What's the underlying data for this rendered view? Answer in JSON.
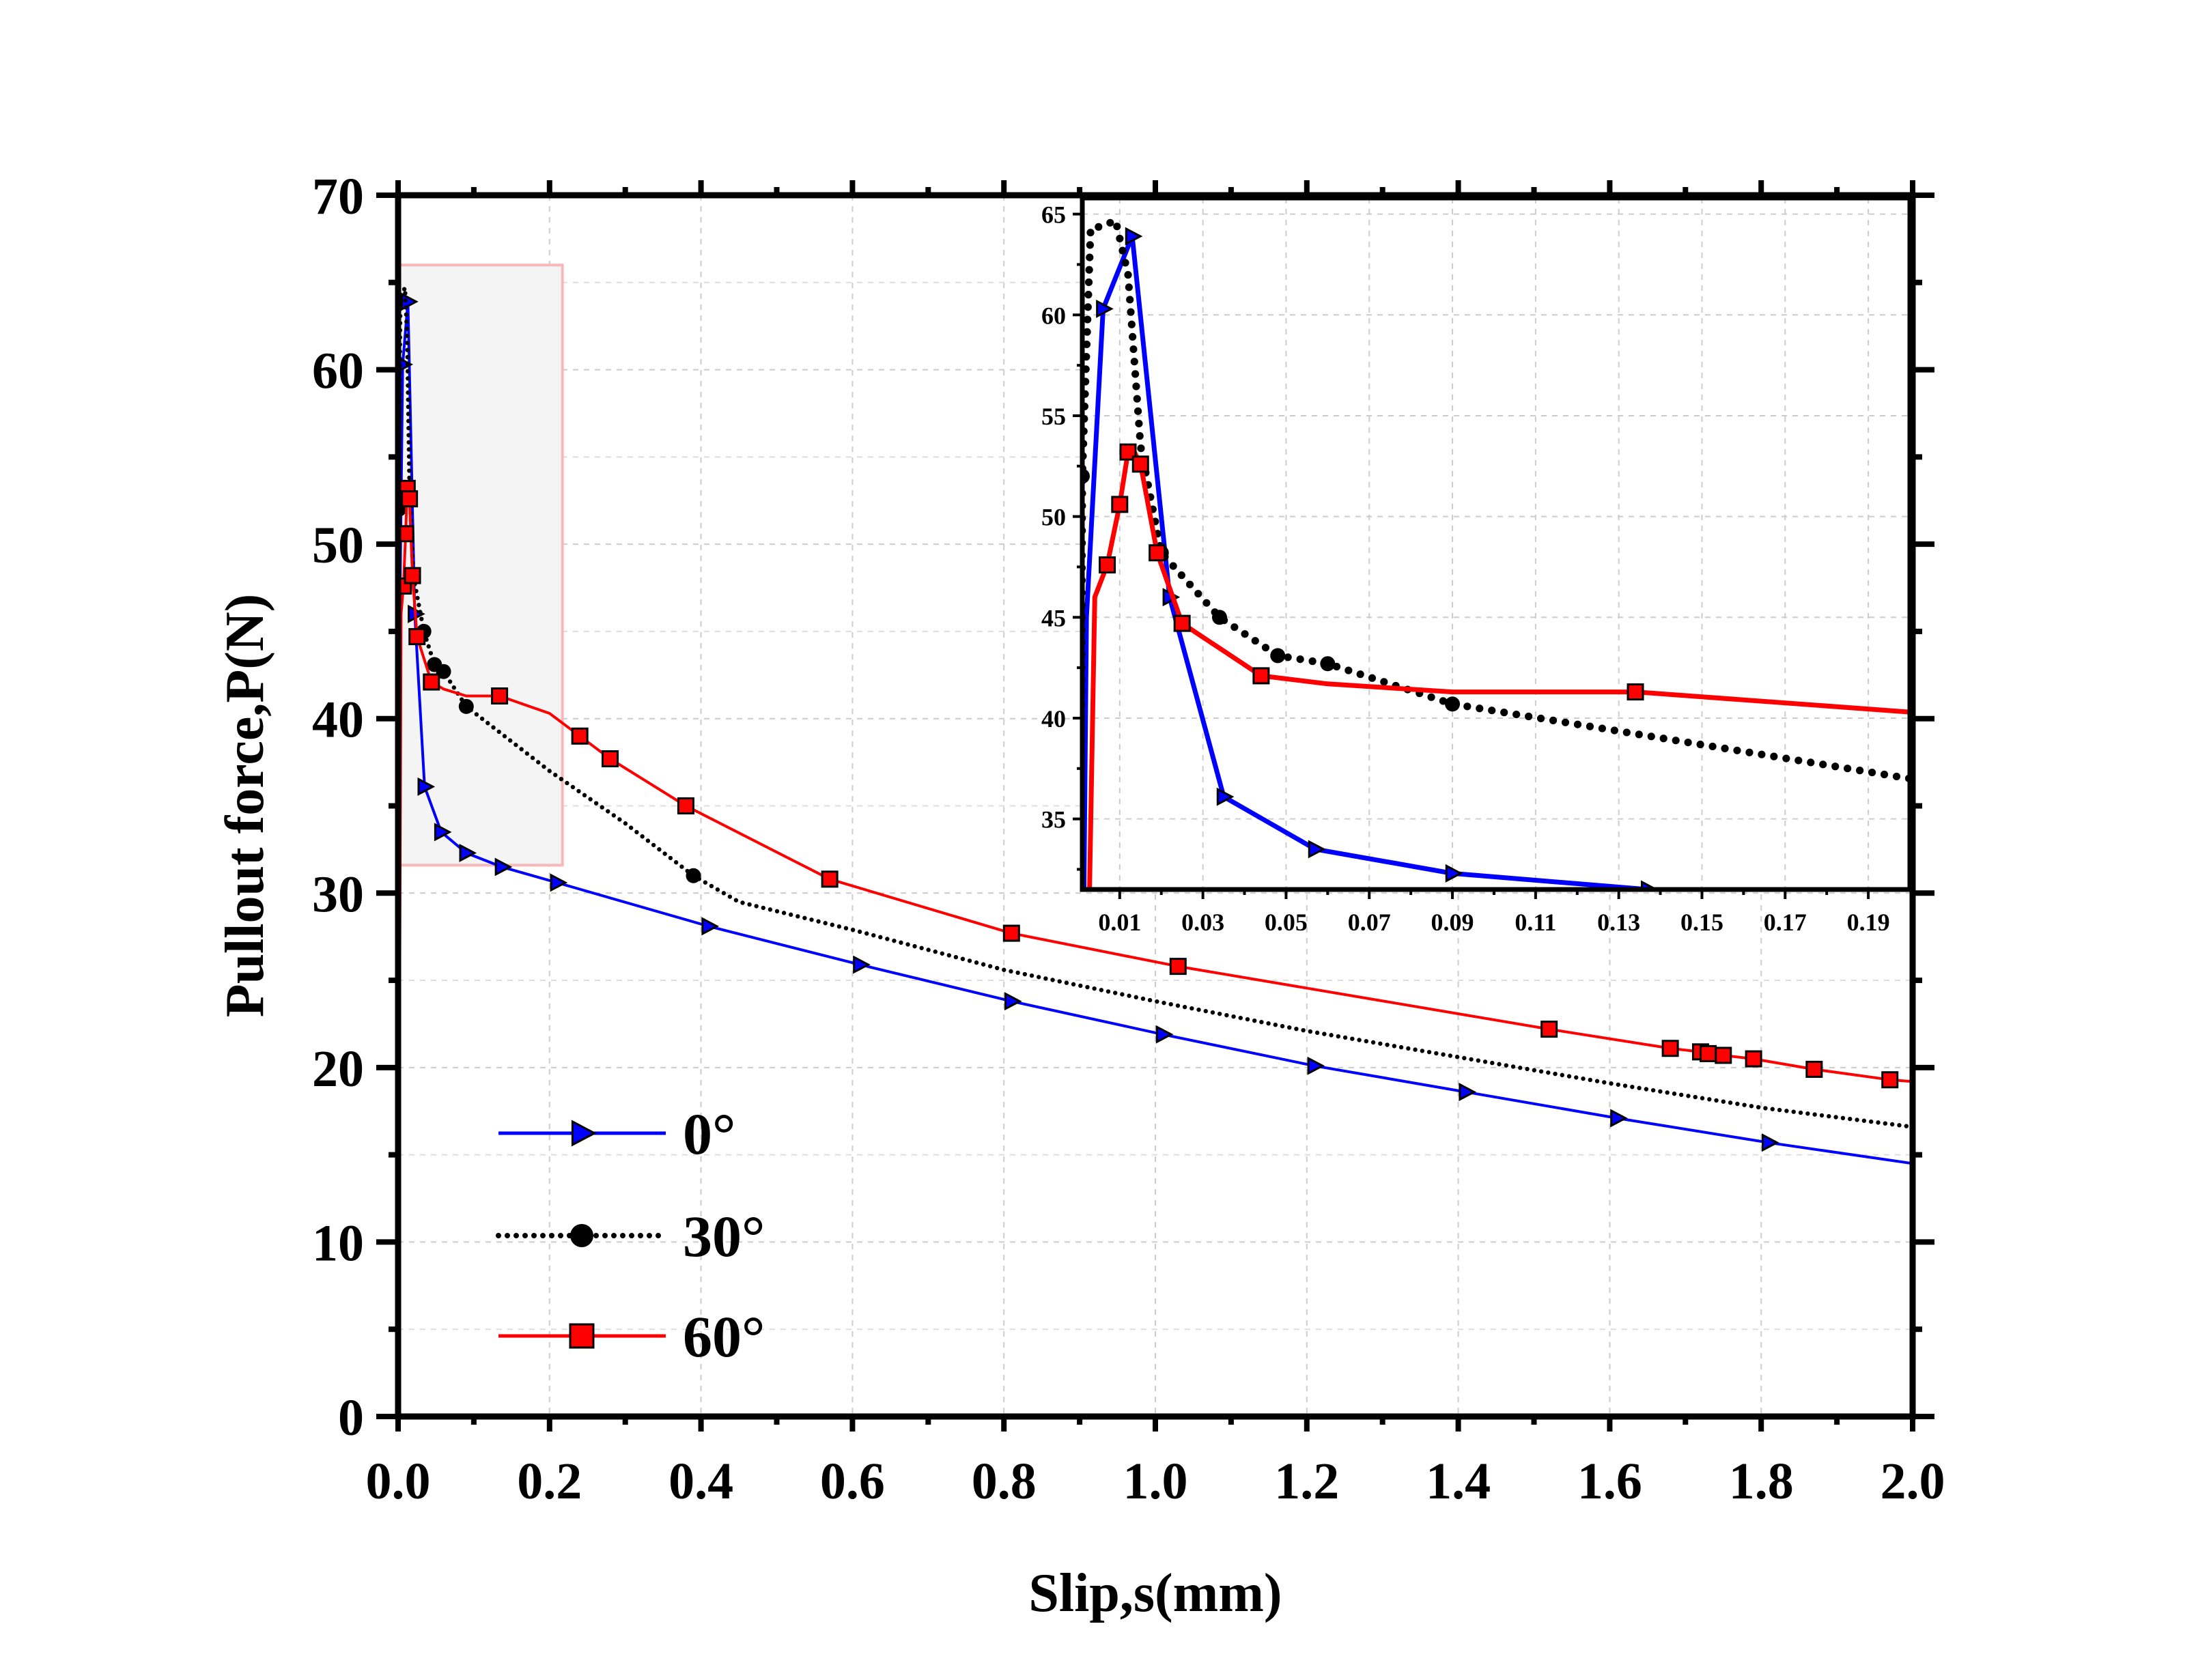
{
  "chart_data": {
    "type": "line",
    "xlabel": "Slip,s(mm)",
    "ylabel": "Pullout force,P(N)",
    "xlim": [
      0,
      2.0
    ],
    "ylim": [
      0,
      70
    ],
    "xticks": [
      "0.0",
      "0.2",
      "0.4",
      "0.6",
      "0.8",
      "1.0",
      "1.2",
      "1.4",
      "1.6",
      "1.8",
      "2.0"
    ],
    "yticks": [
      "0",
      "10",
      "20",
      "30",
      "40",
      "50",
      "60",
      "70"
    ],
    "grid": true,
    "legend_position": "bottom-left",
    "highlight_region": {
      "x": [
        0,
        0.217
      ],
      "y": [
        31.6,
        66
      ],
      "fill": "#f4f4f4",
      "stroke": "#f6b8b8"
    },
    "inset": {
      "xlim": [
        0.001,
        0.2
      ],
      "ylim": [
        31.5,
        65.8
      ],
      "xticks": [
        "0.01",
        "0.03",
        "0.05",
        "0.07",
        "0.09",
        "0.11",
        "0.13",
        "0.15",
        "0.17",
        "0.19"
      ],
      "yticks": [
        "35",
        "40",
        "45",
        "50",
        "55",
        "60",
        "65"
      ]
    },
    "series": [
      {
        "name": "0°",
        "color": "#0000ff",
        "marker": "triangle-right",
        "line_style": "solid",
        "points": [
          [
            0,
            0
          ],
          [
            0.002,
            45
          ],
          [
            0.006,
            60.3
          ],
          [
            0.013,
            63.9
          ],
          [
            0.022,
            46
          ],
          [
            0.035,
            36.1
          ],
          [
            0.057,
            33.5
          ],
          [
            0.09,
            32.3
          ],
          [
            0.137,
            31.5
          ],
          [
            0.21,
            30.6
          ],
          [
            0.41,
            28.1
          ],
          [
            0.61,
            25.9
          ],
          [
            0.81,
            23.8
          ],
          [
            1.01,
            21.9
          ],
          [
            1.21,
            20.1
          ],
          [
            1.41,
            18.6
          ],
          [
            1.61,
            17.1
          ],
          [
            1.81,
            15.7
          ],
          [
            2.0,
            14.5
          ]
        ],
        "markers": [
          [
            0.006,
            60.3
          ],
          [
            0.013,
            63.9
          ],
          [
            0.022,
            46
          ],
          [
            0.035,
            36.1
          ],
          [
            0.057,
            33.5
          ],
          [
            0.09,
            32.3
          ],
          [
            0.137,
            31.5
          ],
          [
            0.21,
            30.6
          ],
          [
            0.41,
            28.1
          ],
          [
            0.61,
            25.9
          ],
          [
            0.81,
            23.8
          ],
          [
            1.01,
            21.9
          ],
          [
            1.21,
            20.1
          ],
          [
            1.41,
            18.6
          ],
          [
            1.61,
            17.1
          ],
          [
            1.81,
            15.7
          ]
        ]
      },
      {
        "name": "30°",
        "color": "#000000",
        "marker": "circle",
        "line_style": "dotted",
        "points": [
          [
            0,
            0
          ],
          [
            0.001,
            52
          ],
          [
            0.003,
            64.3
          ],
          [
            0.006,
            64.4
          ],
          [
            0.009,
            64.7
          ],
          [
            0.012,
            62
          ],
          [
            0.015,
            53.5
          ],
          [
            0.02,
            48.2
          ],
          [
            0.034,
            45
          ],
          [
            0.048,
            43.1
          ],
          [
            0.06,
            42.7
          ],
          [
            0.09,
            40.7
          ],
          [
            0.2,
            37
          ],
          [
            0.3,
            34
          ],
          [
            0.39,
            31
          ],
          [
            0.45,
            29.5
          ],
          [
            0.6,
            27.9
          ],
          [
            0.8,
            25.6
          ],
          [
            1.0,
            23.8
          ],
          [
            1.2,
            22.1
          ],
          [
            1.4,
            20.6
          ],
          [
            1.6,
            19.1
          ],
          [
            1.8,
            17.7
          ],
          [
            2.0,
            16.6
          ]
        ],
        "markers": [
          [
            0.001,
            52
          ],
          [
            0.02,
            48.2
          ],
          [
            0.034,
            45
          ],
          [
            0.048,
            43.1
          ],
          [
            0.06,
            42.7
          ],
          [
            0.09,
            40.7
          ],
          [
            0.39,
            31
          ]
        ]
      },
      {
        "name": "60°",
        "color": "#ff0000",
        "marker": "square",
        "line_style": "solid",
        "points": [
          [
            0,
            0
          ],
          [
            0.004,
            46
          ],
          [
            0.007,
            47.6
          ],
          [
            0.01,
            50.6
          ],
          [
            0.012,
            53.2
          ],
          [
            0.013,
            53.4
          ],
          [
            0.015,
            52.6
          ],
          [
            0.019,
            48.2
          ],
          [
            0.025,
            44.7
          ],
          [
            0.044,
            42.1
          ],
          [
            0.06,
            41.7
          ],
          [
            0.09,
            41.3
          ],
          [
            0.134,
            41.3
          ],
          [
            0.2,
            40.3
          ],
          [
            0.24,
            39
          ],
          [
            0.28,
            37.7
          ],
          [
            0.38,
            35
          ],
          [
            0.57,
            30.8
          ],
          [
            0.81,
            27.7
          ],
          [
            1.03,
            25.8
          ],
          [
            1.52,
            22.2
          ],
          [
            1.68,
            21.1
          ],
          [
            1.72,
            20.9
          ],
          [
            1.73,
            20.8
          ],
          [
            1.75,
            20.7
          ],
          [
            1.79,
            20.5
          ],
          [
            1.87,
            19.9
          ],
          [
            1.97,
            19.3
          ],
          [
            2.0,
            19.2
          ]
        ],
        "markers": [
          [
            0.007,
            47.6
          ],
          [
            0.01,
            50.6
          ],
          [
            0.012,
            53.2
          ],
          [
            0.015,
            52.6
          ],
          [
            0.019,
            48.2
          ],
          [
            0.025,
            44.7
          ],
          [
            0.044,
            42.1
          ],
          [
            0.134,
            41.3
          ],
          [
            0.24,
            39
          ],
          [
            0.28,
            37.7
          ],
          [
            0.38,
            35
          ],
          [
            0.57,
            30.8
          ],
          [
            0.81,
            27.7
          ],
          [
            1.03,
            25.8
          ],
          [
            1.52,
            22.2
          ],
          [
            1.68,
            21.1
          ],
          [
            1.72,
            20.9
          ],
          [
            1.73,
            20.8
          ],
          [
            1.75,
            20.7
          ],
          [
            1.79,
            20.5
          ],
          [
            1.87,
            19.9
          ],
          [
            1.97,
            19.3
          ]
        ]
      }
    ]
  }
}
